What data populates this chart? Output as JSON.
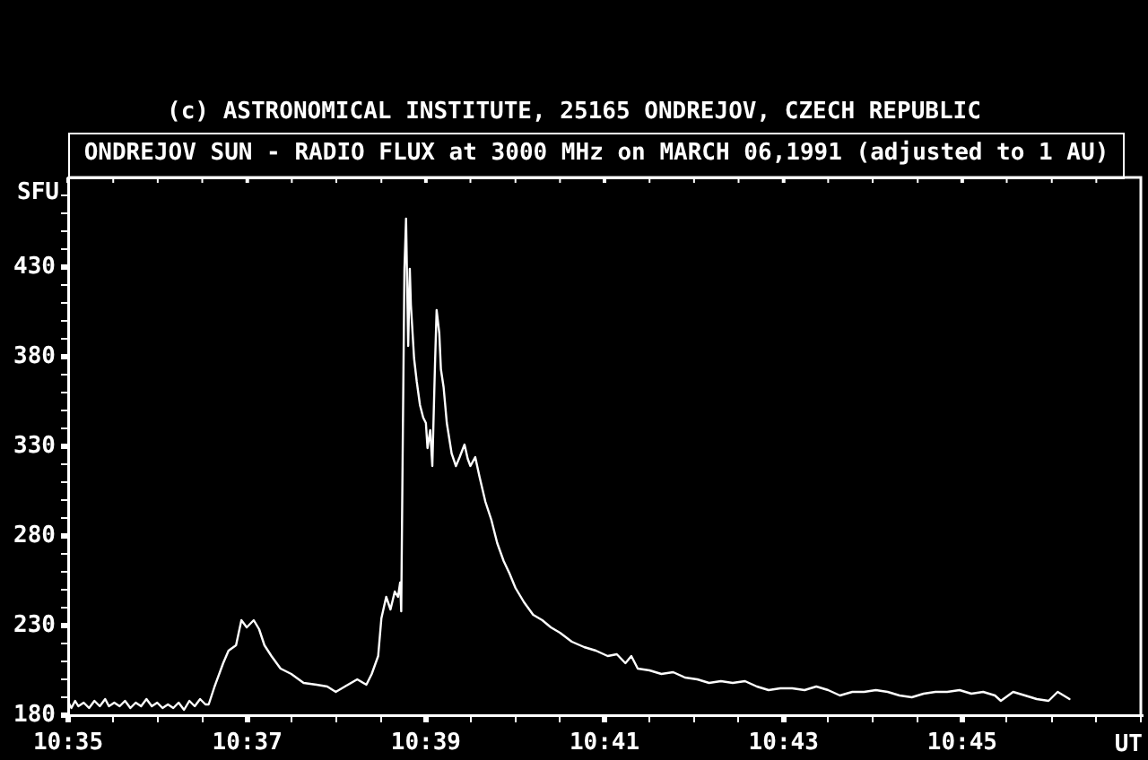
{
  "chart_data": {
    "type": "line",
    "title": "ONDREJOV SUN - RADIO FLUX at 3000 MHz on MARCH 06,1991 (adjusted to 1 AU)",
    "annotations": [
      "(c) ASTRONOMICAL INSTITUTE, 25165 ONDREJOV, CZECH REPUBLIC"
    ],
    "xlabel": "UT",
    "ylabel": "SFU",
    "x": [
      10.5834,
      10.5839,
      10.5846,
      10.5852,
      10.5862,
      10.5872,
      10.5882,
      10.5892,
      10.5902,
      10.5909,
      10.5919,
      10.5929,
      10.5939,
      10.5949,
      10.5959,
      10.5969,
      10.5979,
      10.5989,
      10.5999,
      10.6009,
      10.6019,
      10.6029,
      10.6039,
      10.6049,
      10.6059,
      10.6069,
      10.6079,
      10.6089,
      10.6095,
      10.6106,
      10.6122,
      10.6132,
      10.6146,
      10.6156,
      10.6166,
      10.6179,
      10.6189,
      10.6199,
      10.6212,
      10.6229,
      10.6249,
      10.6272,
      10.6296,
      10.6316,
      10.6332,
      10.6349,
      10.6372,
      10.6389,
      10.6399,
      10.6411,
      10.6417,
      10.6426,
      10.6434,
      10.6442,
      10.6448,
      10.6452,
      10.6454,
      10.6457,
      10.646,
      10.6463,
      10.6467,
      10.647,
      10.6472,
      10.6478,
      10.6483,
      10.6489,
      10.6495,
      10.65,
      10.6503,
      10.6508,
      10.6512,
      10.6517,
      10.652,
      10.6525,
      10.6528,
      10.6533,
      10.6539,
      10.6548,
      10.6556,
      10.6563,
      10.6572,
      10.6578,
      10.6583,
      10.6592,
      10.66,
      10.6611,
      10.6622,
      10.6633,
      10.6645,
      10.6656,
      10.6667,
      10.6683,
      10.67,
      10.6717,
      10.6733,
      10.675,
      10.6772,
      10.6795,
      10.6817,
      10.6839,
      10.6856,
      10.6872,
      10.6883,
      10.6895,
      10.6917,
      10.6939,
      10.6961,
      10.6983,
      10.7006,
      10.7028,
      10.705,
      10.7072,
      10.7095,
      10.7117,
      10.7139,
      10.7161,
      10.7183,
      10.7206,
      10.7228,
      10.725,
      10.7272,
      10.7295,
      10.7317,
      10.7339,
      10.7361,
      10.7383,
      10.7406,
      10.7428,
      10.745,
      10.7472,
      10.7495,
      10.7517,
      10.7539,
      10.7561,
      10.7572,
      10.7595,
      10.7617,
      10.7639,
      10.7661,
      10.7678,
      10.77
    ],
    "series": [
      {
        "color": "#ffffff",
        "values": [
          187,
          184,
          188,
          185,
          187,
          184,
          188,
          185,
          189,
          185,
          187,
          185,
          188,
          184,
          187,
          185,
          189,
          185,
          187,
          184,
          186,
          184,
          187,
          183,
          188,
          185,
          189,
          186,
          186,
          196,
          209,
          216,
          219,
          233,
          229,
          233,
          228,
          219,
          213,
          206,
          203,
          198,
          197,
          196,
          193,
          196,
          200,
          197,
          203,
          213,
          234,
          246,
          239,
          249,
          246,
          254,
          238,
          336,
          429,
          457,
          386,
          429,
          409,
          379,
          366,
          353,
          346,
          343,
          329,
          339,
          319,
          376,
          406,
          393,
          373,
          363,
          343,
          326,
          319,
          324,
          331,
          323,
          319,
          324,
          313,
          299,
          289,
          276,
          266,
          259,
          251,
          243,
          236,
          233,
          229,
          226,
          221,
          218,
          216,
          213,
          214,
          209,
          213,
          206,
          205,
          203,
          204,
          201,
          200,
          198,
          199,
          198,
          199,
          196,
          194,
          195,
          195,
          194,
          196,
          194,
          191,
          193,
          193,
          194,
          193,
          191,
          190,
          192,
          193,
          193,
          194,
          192,
          193,
          191,
          188,
          193,
          191,
          189,
          188,
          193,
          189
        ]
      }
    ],
    "xlim": [
      10.5833,
      10.7833
    ],
    "xticks": [
      {
        "value": 10.5833,
        "label": "10:35"
      },
      {
        "value": 10.5917,
        "label": null
      },
      {
        "value": 10.6,
        "label": null
      },
      {
        "value": 10.6083,
        "label": null
      },
      {
        "value": 10.6167,
        "label": "10:37"
      },
      {
        "value": 10.625,
        "label": null
      },
      {
        "value": 10.6333,
        "label": null
      },
      {
        "value": 10.6417,
        "label": null
      },
      {
        "value": 10.65,
        "label": "10:39"
      },
      {
        "value": 10.6583,
        "label": null
      },
      {
        "value": 10.6667,
        "label": null
      },
      {
        "value": 10.675,
        "label": null
      },
      {
        "value": 10.6833,
        "label": "10:41"
      },
      {
        "value": 10.6917,
        "label": null
      },
      {
        "value": 10.7,
        "label": null
      },
      {
        "value": 10.7083,
        "label": null
      },
      {
        "value": 10.7167,
        "label": "10:43"
      },
      {
        "value": 10.725,
        "label": null
      },
      {
        "value": 10.7333,
        "label": null
      },
      {
        "value": 10.7417,
        "label": null
      },
      {
        "value": 10.75,
        "label": "10:45"
      },
      {
        "value": 10.7583,
        "label": null
      },
      {
        "value": 10.7667,
        "label": null
      },
      {
        "value": 10.775,
        "label": null
      },
      {
        "value": 10.7833,
        "label": null
      }
    ],
    "ylim": [
      180,
      480
    ],
    "yticks": [
      180,
      {
        "value": 190,
        "label": null
      },
      {
        "value": 200,
        "label": null
      },
      {
        "value": 210,
        "label": null
      },
      {
        "value": 220,
        "label": null
      },
      230,
      {
        "value": 240,
        "label": null
      },
      {
        "value": 250,
        "label": null
      },
      {
        "value": 260,
        "label": null
      },
      {
        "value": 270,
        "label": null
      },
      280,
      {
        "value": 290,
        "label": null
      },
      {
        "value": 300,
        "label": null
      },
      {
        "value": 310,
        "label": null
      },
      {
        "value": 320,
        "label": null
      },
      330,
      {
        "value": 340,
        "label": null
      },
      {
        "value": 350,
        "label": null
      },
      {
        "value": 360,
        "label": null
      },
      {
        "value": 370,
        "label": null
      },
      380,
      {
        "value": 390,
        "label": null
      },
      {
        "value": 400,
        "label": null
      },
      {
        "value": 410,
        "label": null
      },
      {
        "value": 420,
        "label": null
      },
      430,
      {
        "value": 440,
        "label": null
      },
      {
        "value": 450,
        "label": null
      },
      {
        "value": 460,
        "label": null
      },
      {
        "value": 470,
        "label": null
      }
    ]
  }
}
